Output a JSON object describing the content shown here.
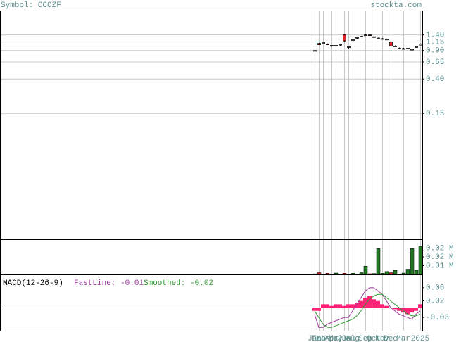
{
  "header": {
    "symbol": "Symbol: CCOZF",
    "site": "stockta.com"
  },
  "chart_data": [
    {
      "type": "candlestick",
      "log_scale": true,
      "grid": true,
      "up_color": "#ffffff",
      "down_color": "#dd2222",
      "open": [
        0.88,
        1.1,
        1.1,
        1.08,
        1.02,
        1.02,
        1.05,
        1.4,
        0.98,
        1.2,
        1.28,
        1.33,
        1.38,
        1.4,
        1.32,
        1.28,
        1.25,
        1.23,
        1.15,
        1.02,
        0.96,
        0.95,
        0.95,
        0.92,
        1.0,
        1.05
      ],
      "high": [
        0.9,
        1.12,
        1.15,
        1.1,
        1.05,
        1.05,
        1.08,
        1.42,
        1.02,
        1.25,
        1.32,
        1.36,
        1.42,
        1.42,
        1.34,
        1.3,
        1.28,
        1.26,
        1.18,
        1.04,
        0.98,
        0.97,
        0.97,
        0.95,
        1.02,
        1.1
      ],
      "low": [
        0.88,
        1.05,
        1.1,
        1.05,
        1.0,
        1.01,
        1.03,
        1.15,
        0.95,
        1.18,
        1.26,
        1.31,
        1.37,
        1.38,
        1.3,
        1.26,
        1.24,
        1.22,
        1.0,
        1.0,
        0.94,
        0.93,
        0.93,
        0.91,
        0.98,
        1.04
      ],
      "close": [
        0.9,
        1.06,
        1.13,
        1.06,
        1.04,
        1.04,
        1.07,
        1.18,
        1.0,
        1.22,
        1.3,
        1.35,
        1.4,
        1.39,
        1.33,
        1.28,
        1.26,
        1.24,
        1.02,
        1.02,
        0.96,
        0.95,
        0.96,
        0.93,
        1.0,
        1.08
      ],
      "ylim": [
        0.0042,
        2.8
      ],
      "yticks": [
        {
          "value": 1.4,
          "label": "1.40"
        },
        1.15,
        {
          "value": 0.9,
          "label": "0.90"
        },
        0.65,
        {
          "value": 0.4,
          "label": "0.40"
        },
        0.15
      ]
    },
    {
      "type": "bar",
      "colors": [
        "#227722",
        "#dd2222"
      ],
      "values": [
        0.0005,
        0.0015,
        0.0002,
        0.001,
        0.0003,
        0.0012,
        0.0001,
        0.001,
        0.0003,
        0.001,
        0.0004,
        0.0015,
        0.007,
        0.0006,
        0.0008,
        0.022,
        0.001,
        0.0025,
        0.0015,
        0.0035,
        0.0003,
        0.0012,
        0.0045,
        0.022,
        0.0035,
        0.024
      ],
      "up": [
        true,
        false,
        true,
        false,
        true,
        true,
        true,
        false,
        true,
        true,
        true,
        true,
        true,
        false,
        true,
        true,
        true,
        true,
        false,
        true,
        true,
        true,
        true,
        true,
        true,
        true
      ],
      "ylim": [
        0,
        0.03
      ],
      "yticks": [
        {
          "value": 0.0225,
          "label": "0.02 M"
        },
        {
          "value": 0.015,
          "label": "0.02 M"
        },
        {
          "value": 0.0075,
          "label": "0.01 M"
        }
      ]
    },
    {
      "type": "macd",
      "title": "MACD(12-26-9)",
      "fast_label": "FastLine: -0.01",
      "smooth_label": "Smoothed: -0.02",
      "categories": [
        "Jan",
        "Feb",
        "Mar",
        null,
        "Apr",
        "May",
        null,
        "Jun",
        "Jul",
        "Aug",
        null,
        null,
        "Sep",
        null,
        "Oct",
        null,
        "Nov",
        null,
        "Dec",
        null,
        null,
        "Mar",
        null,
        null,
        null,
        "2025"
      ],
      "series": [
        {
          "name": "Histogram",
          "color": "#ff2277",
          "values": [
            -0.01,
            -0.01,
            0.01,
            0.01,
            0.005,
            0.01,
            0.01,
            0.005,
            0.01,
            0.01,
            0.015,
            0.02,
            0.03,
            0.035,
            0.025,
            0.02,
            0.01,
            0.005,
            0.0,
            -0.005,
            -0.01,
            -0.015,
            -0.02,
            -0.015,
            -0.01,
            0.01
          ]
        },
        {
          "name": "FastLine",
          "color": "#993399",
          "values": [
            -0.02,
            -0.06,
            -0.06,
            -0.05,
            -0.045,
            -0.04,
            -0.035,
            -0.03,
            -0.03,
            -0.01,
            0.01,
            0.03,
            0.05,
            0.06,
            0.06,
            0.05,
            0.04,
            0.02,
            0.0,
            -0.01,
            -0.02,
            -0.025,
            -0.03,
            -0.035,
            -0.02,
            -0.01
          ]
        },
        {
          "name": "Smoothed",
          "color": "#339933",
          "values": [
            -0.01,
            -0.03,
            -0.05,
            -0.06,
            -0.06,
            -0.055,
            -0.05,
            -0.045,
            -0.04,
            -0.035,
            -0.025,
            -0.01,
            0.01,
            0.025,
            0.035,
            0.04,
            0.04,
            0.03,
            0.02,
            0.01,
            0.0,
            -0.01,
            -0.02,
            -0.025,
            -0.025,
            -0.02
          ]
        }
      ],
      "ylim": [
        -0.07,
        0.1
      ],
      "yticks": [
        0.06,
        0.02,
        -0.03
      ]
    }
  ]
}
